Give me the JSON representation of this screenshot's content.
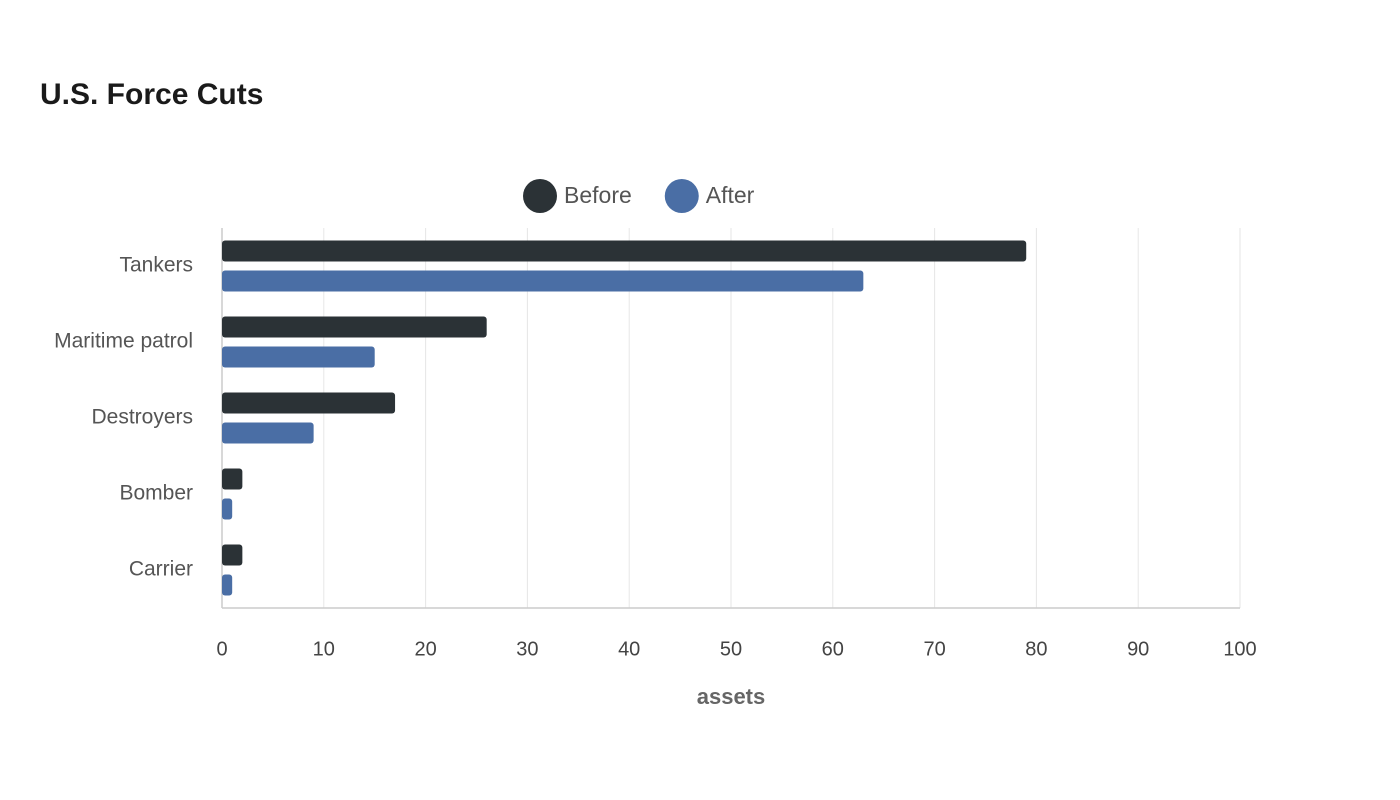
{
  "chart_data": {
    "type": "bar",
    "orientation": "horizontal",
    "title": "U.S. Force Cuts",
    "categories": [
      "Tankers",
      "Maritime patrol",
      "Destroyers",
      "Bomber",
      "Carrier"
    ],
    "series": [
      {
        "name": "Before",
        "color": "#2b3236",
        "values": [
          79,
          26,
          17,
          2,
          2
        ]
      },
      {
        "name": "After",
        "color": "#4a6ea5",
        "values": [
          63,
          15,
          9,
          1,
          1
        ]
      }
    ],
    "xlabel": "assets",
    "xlim": [
      0,
      100
    ],
    "xticks": [
      0,
      10,
      20,
      30,
      40,
      50,
      60,
      70,
      80,
      90,
      100
    ],
    "grid": true,
    "legend_position": "top"
  }
}
